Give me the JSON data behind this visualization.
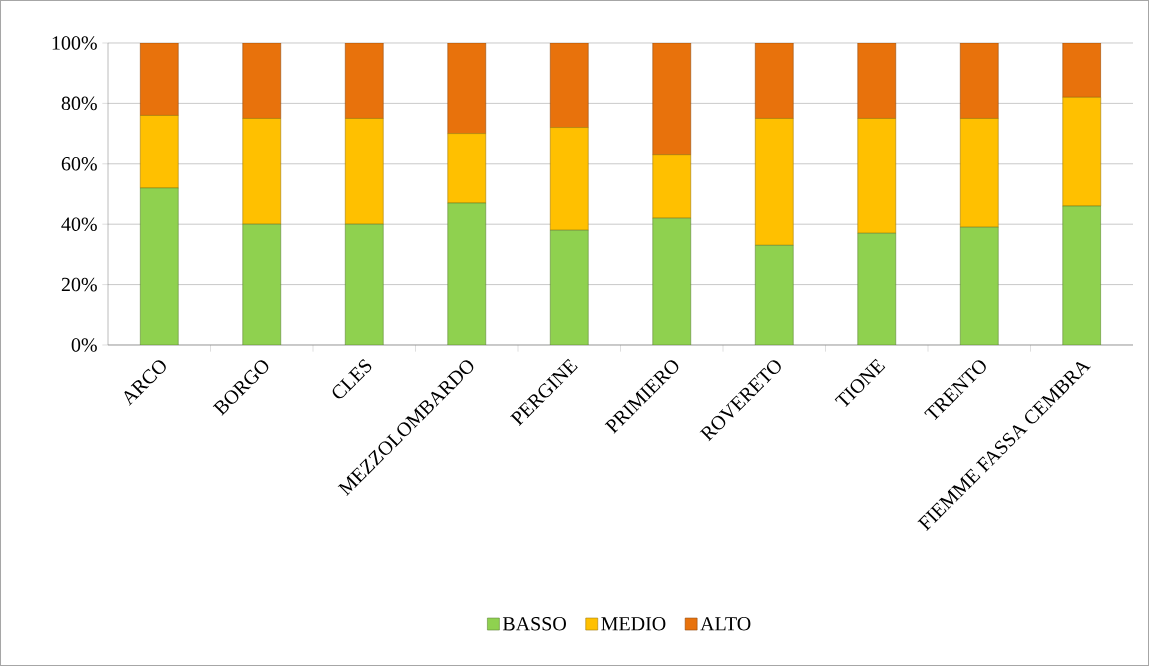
{
  "chart_data": {
    "type": "bar",
    "stacked": true,
    "categories": [
      "ARCO",
      "BORGO",
      "CLES",
      "MEZZOLOMBARDO",
      "PERGINE",
      "PRIMIERO",
      "ROVERETO",
      "TIONE",
      "TRENTO",
      "FIEMME FASSA CEMBRA"
    ],
    "series": [
      {
        "name": "BASSO",
        "color": "#8fd14f",
        "values": [
          52,
          40,
          40,
          47,
          38,
          42,
          33,
          37,
          39,
          46
        ]
      },
      {
        "name": "MEDIO",
        "color": "#ffc000",
        "values": [
          24,
          35,
          35,
          23,
          34,
          21,
          42,
          38,
          36,
          36
        ]
      },
      {
        "name": "ALTO",
        "color": "#e8720c",
        "values": [
          24,
          25,
          25,
          30,
          28,
          37,
          25,
          25,
          25,
          18
        ]
      }
    ],
    "ylim": [
      0,
      100
    ],
    "yticks": [
      {
        "value": 0,
        "label": "0%"
      },
      {
        "value": 20,
        "label": "20%"
      },
      {
        "value": 40,
        "label": "40%"
      },
      {
        "value": 60,
        "label": "60%"
      },
      {
        "value": 80,
        "label": "80%"
      },
      {
        "value": 100,
        "label": "100%"
      }
    ],
    "grid": "y",
    "legend": "bottom"
  }
}
